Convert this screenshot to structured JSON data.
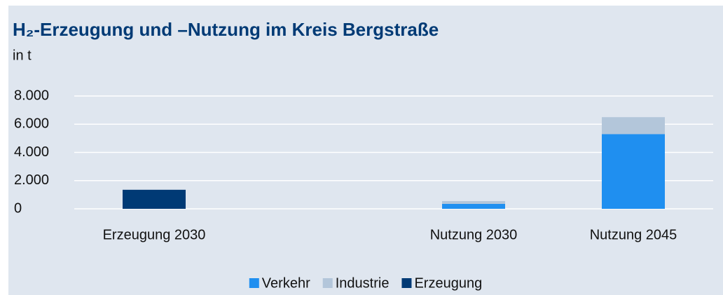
{
  "chart_data": {
    "type": "bar",
    "stacked": true,
    "title": "H₂-Erzeugung und –Nutzung im Kreis Bergstraße",
    "subtitle": "in t",
    "categories": [
      "Erzeugung 2030",
      null,
      "Nutzung 2030",
      "Nutzung 2045"
    ],
    "series": [
      {
        "name": "Verkehr",
        "color": "#1f8ff0",
        "values": [
          null,
          null,
          350,
          5300
        ]
      },
      {
        "name": "Industrie",
        "color": "#b3c6da",
        "values": [
          null,
          null,
          200,
          1200
        ]
      },
      {
        "name": "Erzeugung",
        "color": "#003a75",
        "values": [
          1350,
          null,
          null,
          null
        ]
      }
    ],
    "ylim": [
      0,
      8000
    ],
    "yticks": [
      0,
      {
        "value": 2000,
        "label": "2.000"
      },
      {
        "value": 4000,
        "label": "4.000"
      },
      {
        "value": 6000,
        "label": "6.000"
      },
      {
        "value": 8000,
        "label": "8.000"
      }
    ],
    "grid": true,
    "legend": "bottom"
  }
}
